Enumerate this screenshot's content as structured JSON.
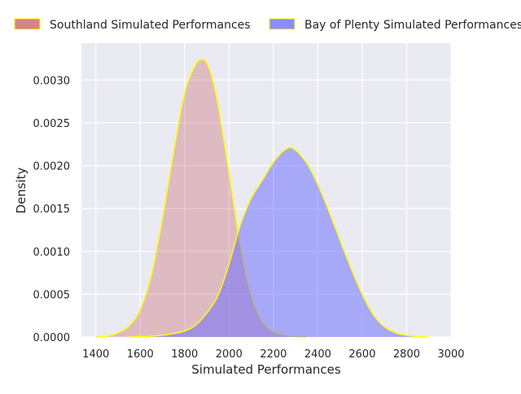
{
  "chart_data": {
    "type": "area",
    "title": "",
    "xlabel": "Simulated Performances",
    "ylabel": "Density",
    "xlim": [
      1335,
      3000
    ],
    "ylim": [
      0,
      0.00343
    ],
    "xticks": [
      1400,
      1600,
      1800,
      2000,
      2200,
      2400,
      2600,
      2800,
      3000
    ],
    "yticks": [
      0.0,
      0.0005,
      0.001,
      0.0015,
      0.002,
      0.0025,
      0.003
    ],
    "ytick_labels": [
      "0.0000",
      "0.0005",
      "0.0010",
      "0.0015",
      "0.0020",
      "0.0025",
      "0.0030"
    ],
    "grid": true,
    "legend_position": "top",
    "background_color": "#eaeaf2",
    "outline_color": "#ffff00",
    "series": [
      {
        "name": "Southland Simulated Performances",
        "color": "#c44e52",
        "fill_opacity": 0.3,
        "legend_opacity": 0.7,
        "x": [
          1400,
          1450,
          1500,
          1550,
          1600,
          1650,
          1700,
          1750,
          1800,
          1850,
          1880,
          1900,
          1920,
          1950,
          2000,
          2050,
          2100,
          2150,
          2200,
          2250,
          2300,
          2350
        ],
        "y": [
          0,
          1e-05,
          5e-05,
          0.00013,
          0.00032,
          0.00072,
          0.00138,
          0.00215,
          0.00285,
          0.00318,
          0.00324,
          0.0032,
          0.00306,
          0.00272,
          0.00192,
          0.00108,
          0.00048,
          0.00018,
          6e-05,
          2e-05,
          5e-06,
          0
        ]
      },
      {
        "name": "Bay of Plenty Simulated Performances",
        "color": "#6666ff",
        "fill_opacity": 0.5,
        "legend_opacity": 0.75,
        "x": [
          1550,
          1600,
          1650,
          1700,
          1750,
          1800,
          1850,
          1900,
          1950,
          2000,
          2050,
          2100,
          2150,
          2200,
          2250,
          2290,
          2350,
          2400,
          2450,
          2500,
          2550,
          2600,
          2650,
          2700,
          2750,
          2800,
          2850,
          2900
        ],
        "y": [
          0,
          5e-06,
          1e-05,
          2e-05,
          4e-05,
          7e-05,
          0.00014,
          0.00028,
          0.00048,
          0.00085,
          0.0013,
          0.00162,
          0.00183,
          0.00204,
          0.00218,
          0.0022,
          0.00203,
          0.00178,
          0.00147,
          0.00113,
          0.0008,
          0.0005,
          0.00026,
          0.00012,
          5e-05,
          2e-05,
          5e-06,
          0
        ]
      }
    ]
  }
}
